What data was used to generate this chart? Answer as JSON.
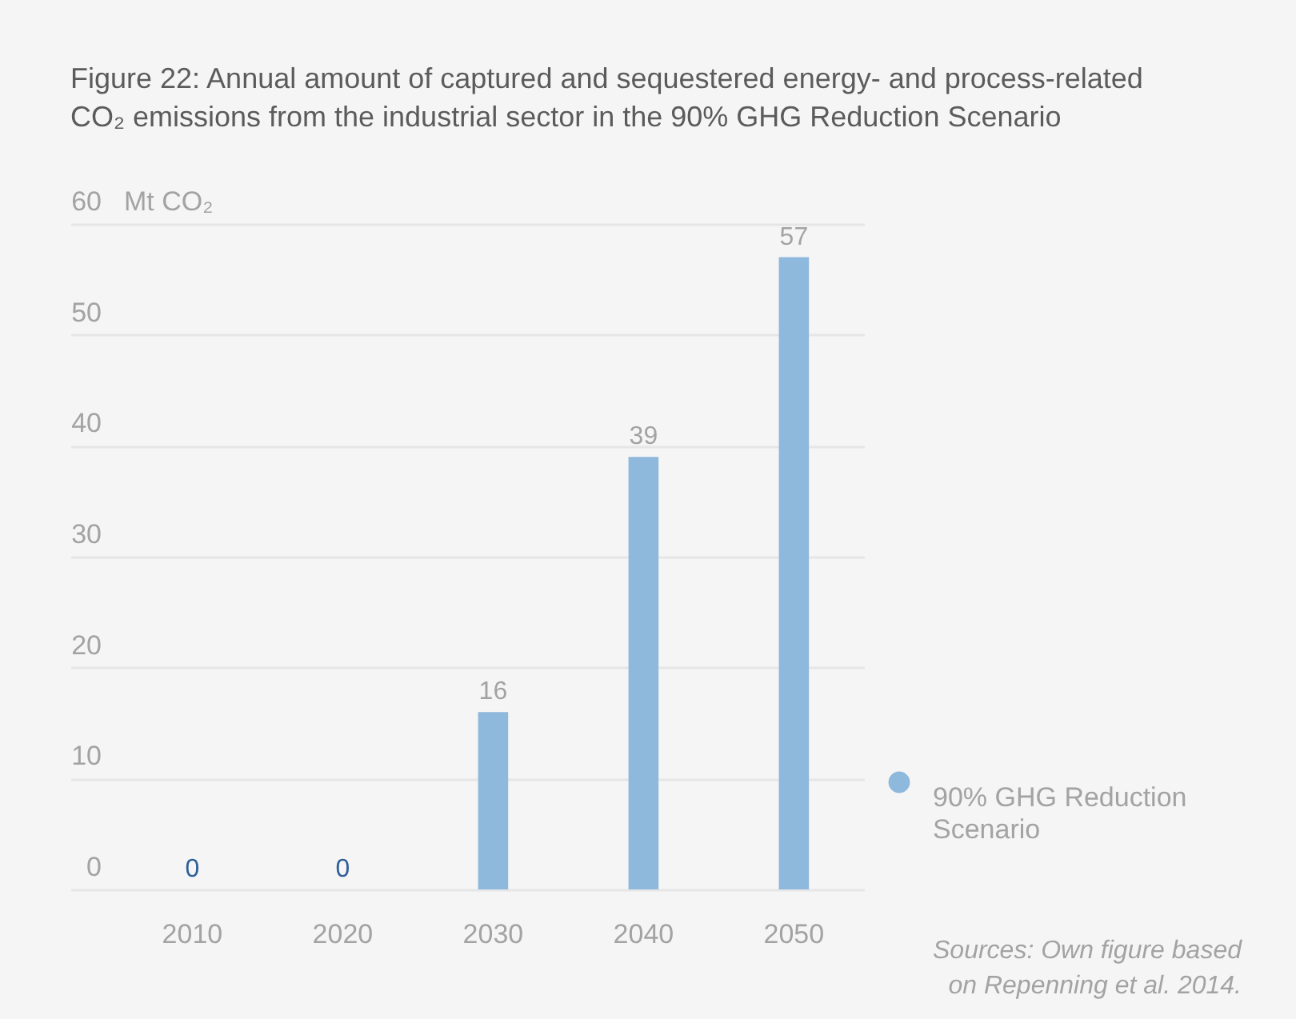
{
  "chart_data": {
    "type": "bar",
    "title": "Figure 22: Annual amount of captured and sequestered energy- and process-related CO₂ emissions from the industrial sector in the 90% GHG Reduction Scenario",
    "ylabel": "Mt CO₂",
    "categories": [
      "2010",
      "2020",
      "2030",
      "2040",
      "2050"
    ],
    "series": [
      {
        "name": "90% GHG Reduction Scenario",
        "color": "#8fb8dd",
        "values": [
          0,
          0,
          16,
          39,
          57
        ]
      }
    ],
    "ylim": [
      0,
      60
    ],
    "yticks": [
      0,
      10,
      20,
      30,
      40,
      50,
      60
    ],
    "grid": "y",
    "data_labels": true,
    "legend": "bottom right",
    "annotations": [
      "Sources: Own figure based on Repenning et al. 2014."
    ]
  }
}
